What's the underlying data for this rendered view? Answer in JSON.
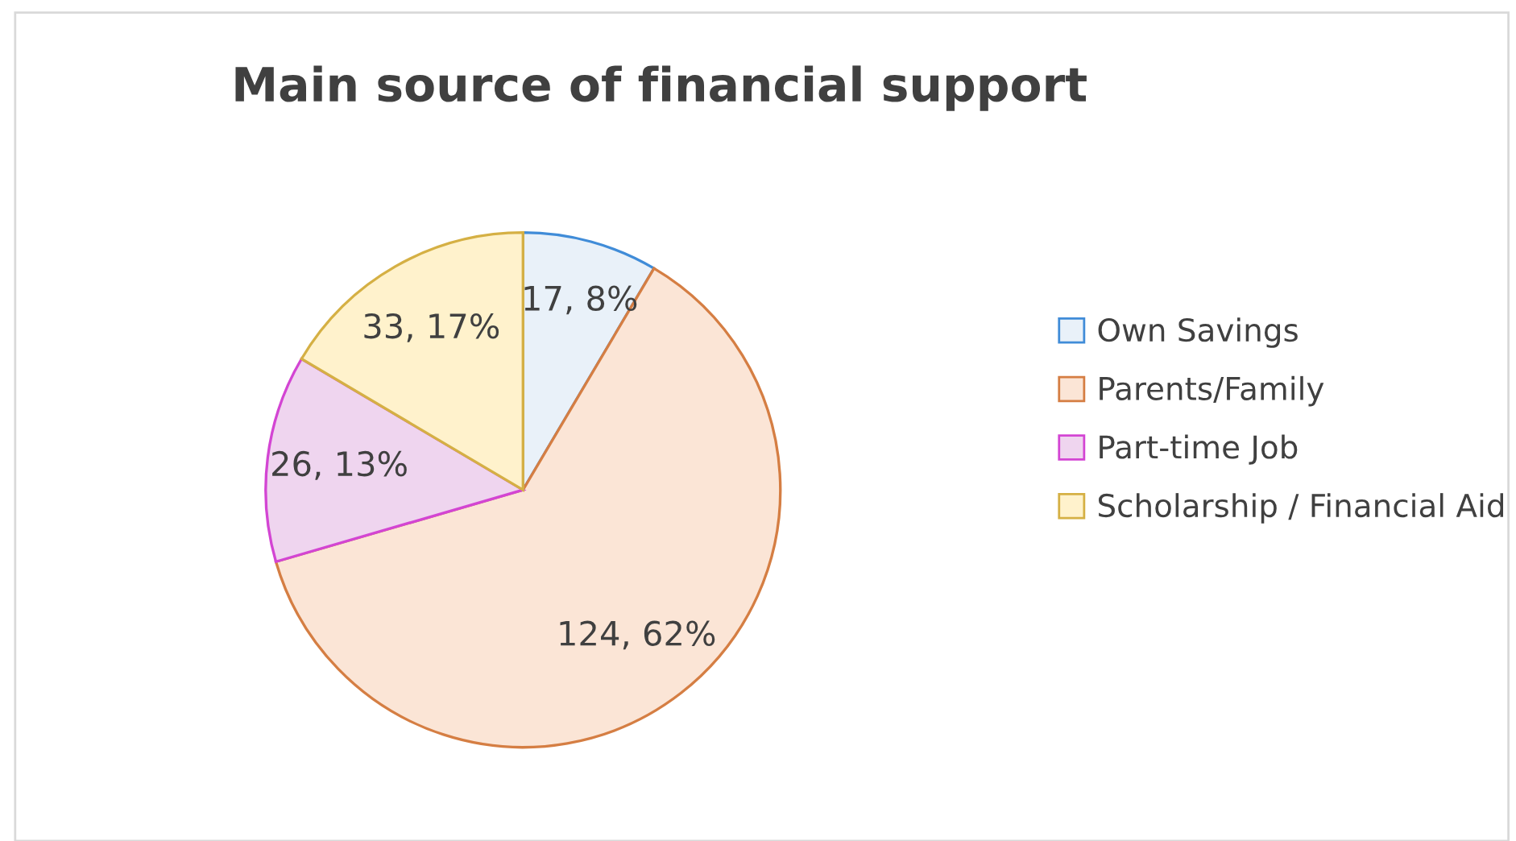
{
  "chart_data": {
    "type": "pie",
    "title": "Main source of financial support",
    "categories": [
      "Own Savings",
      "Parents/Family",
      "Part-time Job",
      "Scholarship / Financial Aid"
    ],
    "values": [
      17,
      124,
      26,
      33
    ],
    "value_labels": [
      "17, 8%",
      "124, 62%",
      "26, 13%",
      "33, 17%"
    ],
    "colors": [
      "#e9f1f9",
      "#fbe5d6",
      "#efd5ef",
      "#fff2cc"
    ],
    "legend": "right"
  }
}
